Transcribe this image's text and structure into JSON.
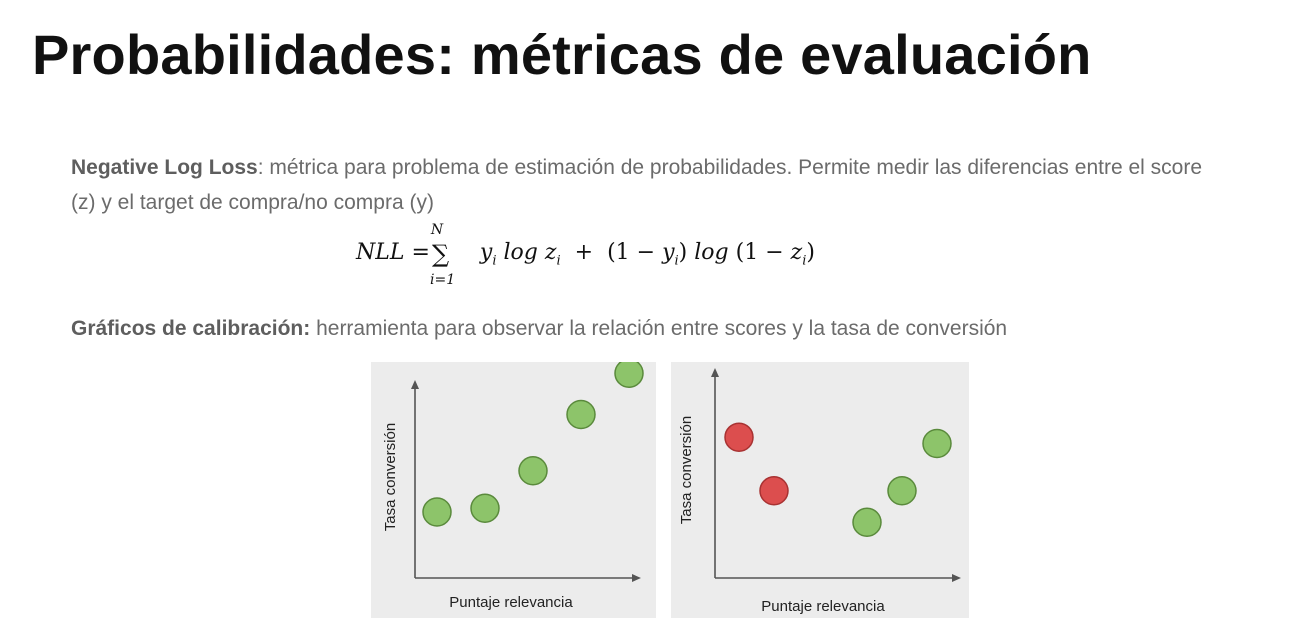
{
  "slide": {
    "title": "Probabilidades: métricas de evaluación",
    "nll": {
      "heading": "Negative Log Loss",
      "text": ": métrica para problema de estimación de probabilidades. Permite medir las diferencias entre el score (z) y el target de compra/no compra (y)"
    },
    "formula": {
      "lhs": "NLL =",
      "sigma": "∑",
      "upper": "N",
      "lower": "i=1"
    },
    "calibration": {
      "heading": "Gráficos de calibración:",
      "text": " herramienta para observar la relación entre scores y la tasa de conversión"
    }
  },
  "colors": {
    "good_point": "#8dc46a",
    "bad_point": "#dc4e4e",
    "point_border": "#5a8a3c",
    "bad_border": "#a83232",
    "panel_bg": "#ececec"
  },
  "chart_data": [
    {
      "type": "scatter",
      "xlabel": "Puntaje relevancia",
      "ylabel": "Tasa conversión",
      "points": [
        {
          "x": 1,
          "y": 1,
          "status": "good"
        },
        {
          "x": 2,
          "y": 1.1,
          "status": "good"
        },
        {
          "x": 3,
          "y": 2.1,
          "status": "good"
        },
        {
          "x": 4,
          "y": 3.6,
          "status": "good"
        },
        {
          "x": 5,
          "y": 4.7,
          "status": "good"
        }
      ]
    },
    {
      "type": "scatter",
      "xlabel": "Puntaje relevancia",
      "ylabel": "Tasa conversión",
      "points": [
        {
          "x": 1,
          "y": 4.2,
          "status": "bad"
        },
        {
          "x": 2,
          "y": 2.5,
          "status": "bad"
        },
        {
          "x": 3,
          "y": 1.5,
          "status": "good"
        },
        {
          "x": 4,
          "y": 2.5,
          "status": "good"
        },
        {
          "x": 5,
          "y": 4.0,
          "status": "good"
        }
      ]
    }
  ]
}
